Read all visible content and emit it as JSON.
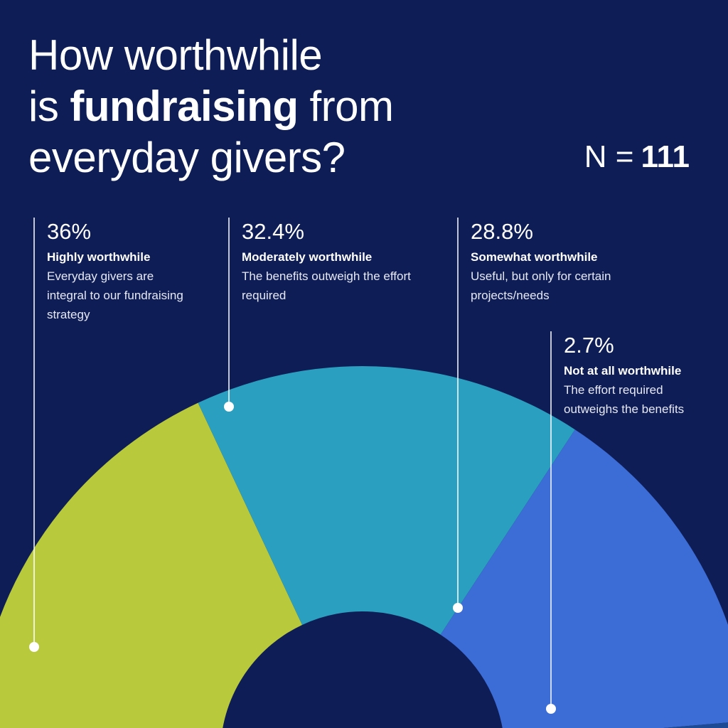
{
  "chart_data": {
    "type": "half-donut",
    "title_lines": [
      [
        "How worthwhile"
      ],
      [
        "is",
        "fundraising",
        "from"
      ],
      [
        "everyday givers?"
      ]
    ],
    "title_bold": [
      [
        false
      ],
      [
        false,
        true,
        false
      ],
      [
        false
      ]
    ],
    "sample_label": "N =",
    "sample_size": 111,
    "categories": [
      "Highly worthwhile",
      "Moderately worthwhile",
      "Somewhat worthwhile",
      "Not at all worthwhile"
    ],
    "descriptions": [
      "Everyday givers are integral to our fundraising strategy",
      "The benefits outweigh the effort required",
      "Useful, but only for certain projects/needs",
      "The effort required outweighs the benefits"
    ],
    "values": [
      36,
      32.4,
      28.8,
      2.7
    ],
    "value_labels": [
      "36%",
      "32.4%",
      "28.8%",
      "2.7%"
    ],
    "colors": [
      "#b9c93c",
      "#2a9fbf",
      "#3c6cd6",
      "#1d4a93"
    ]
  }
}
